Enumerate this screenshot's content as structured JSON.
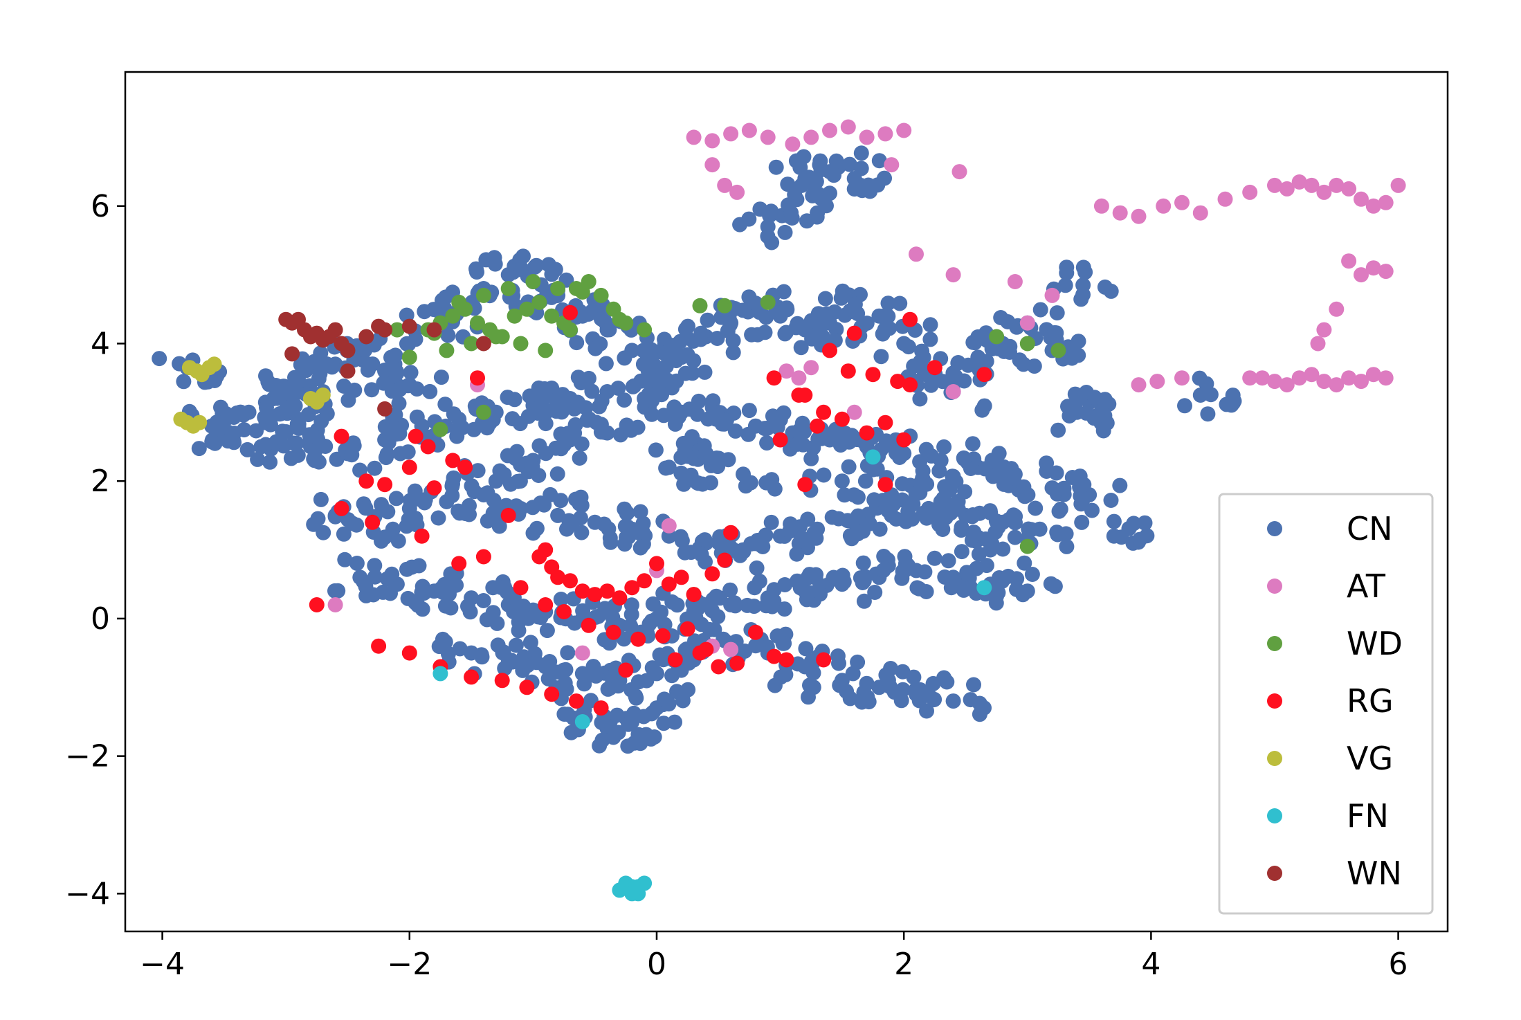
{
  "chart_data": {
    "type": "scatter",
    "title": "",
    "xlabel": "",
    "ylabel": "",
    "xlim": [
      -4.3,
      6.4
    ],
    "ylim": [
      -4.55,
      7.95
    ],
    "xticks": [
      -4,
      -2,
      0,
      2,
      4,
      6
    ],
    "yticks": [
      -4,
      -2,
      0,
      2,
      4,
      6
    ],
    "xtick_labels": [
      "−4",
      "−2",
      "0",
      "2",
      "4",
      "6"
    ],
    "ytick_labels": [
      "−4",
      "−2",
      "0",
      "2",
      "4",
      "6"
    ],
    "grid": false,
    "legend_position": "lower-right",
    "series": [
      {
        "name": "CN",
        "color": "#4c72b0",
        "note_dense": true,
        "x": [
          -3.6,
          -3.3,
          -3.1,
          -2.9,
          -2.6,
          -2.4,
          -2.2,
          -2.0,
          -1.8,
          -1.6,
          -1.4,
          -1.2,
          -1.0,
          -0.8,
          -0.6,
          -0.4,
          -0.2,
          0.0,
          0.2,
          0.4,
          0.6,
          0.8,
          1.0,
          1.2,
          1.4,
          1.6,
          1.8,
          2.0,
          2.2,
          2.4,
          2.6,
          2.8,
          3.0,
          3.2,
          3.4,
          3.6,
          -2.8,
          -2.5,
          -2.2,
          -1.9,
          -1.6,
          -1.3,
          -1.0,
          -0.7,
          -0.4,
          -0.1,
          0.2,
          0.5,
          0.8,
          1.1,
          1.4,
          1.7,
          2.0,
          2.3,
          2.6,
          2.9,
          3.2,
          3.5,
          -2.6,
          -2.3,
          -2.0,
          -1.7,
          -1.4,
          -1.1,
          -0.8,
          -0.5,
          -0.2,
          0.1,
          0.4,
          0.7,
          1.0,
          1.3,
          1.6,
          1.9,
          2.2,
          2.5,
          2.8,
          3.1,
          -2.4,
          -2.1,
          -1.8,
          -1.5,
          -1.2,
          -0.9,
          -0.6,
          -0.3,
          0.0,
          0.3,
          0.6,
          0.9,
          1.2,
          1.5,
          1.8,
          2.1,
          2.4,
          2.7,
          3.0,
          -1.5,
          -1.2,
          -0.9,
          -0.6,
          -0.3,
          0.0,
          0.3,
          0.6,
          0.9,
          1.2,
          1.5,
          1.8,
          2.1,
          2.4,
          -0.6,
          -0.4,
          -0.2,
          0.0,
          1.2,
          1.4,
          1.6,
          0.9,
          1.3,
          3.45,
          4.4,
          3.7,
          -3.8,
          -3.5,
          -3.2,
          -2.9,
          -2.7,
          -1.3,
          -1.0,
          -0.7,
          -0.4,
          0.1,
          0.4,
          0.7,
          1.5,
          1.9,
          2.3,
          2.7
        ],
        "y": [
          2.8,
          3.0,
          3.2,
          3.5,
          3.7,
          3.8,
          3.6,
          3.4,
          4.2,
          4.5,
          4.8,
          5.0,
          4.9,
          4.7,
          4.4,
          4.2,
          3.9,
          3.6,
          3.8,
          4.1,
          4.3,
          4.5,
          4.4,
          4.2,
          4.3,
          4.5,
          4.4,
          4.0,
          3.6,
          3.3,
          3.8,
          4.0,
          4.3,
          3.9,
          3.0,
          3.1,
          2.5,
          2.4,
          2.6,
          2.8,
          2.9,
          3.0,
          3.1,
          3.2,
          3.3,
          3.2,
          3.0,
          2.9,
          2.8,
          2.7,
          2.6,
          2.5,
          2.4,
          2.3,
          2.2,
          2.1,
          1.9,
          1.8,
          1.5,
          1.4,
          1.6,
          1.7,
          1.8,
          1.6,
          1.5,
          1.4,
          1.3,
          1.2,
          1.1,
          1.0,
          1.2,
          1.3,
          1.4,
          1.5,
          1.6,
          1.5,
          1.4,
          1.3,
          0.6,
          0.5,
          0.4,
          0.3,
          0.2,
          0.1,
          0.0,
          -0.1,
          0.0,
          0.1,
          0.2,
          0.3,
          0.4,
          0.5,
          0.6,
          0.7,
          0.6,
          0.5,
          0.4,
          -0.5,
          -0.6,
          -0.7,
          -0.8,
          -0.9,
          -0.8,
          -0.6,
          -0.4,
          -0.5,
          -0.7,
          -0.9,
          -1.0,
          -1.1,
          -1.2,
          -1.4,
          -1.6,
          -1.5,
          -1.3,
          6.4,
          6.5,
          6.4,
          5.7,
          5.9,
          4.85,
          3.25,
          1.2,
          3.65,
          2.7,
          2.5,
          2.9,
          3.3,
          2.0,
          2.3,
          2.6,
          2.7,
          2.2,
          2.4,
          2.1,
          2.0,
          1.8,
          1.7,
          1.0
        ]
      },
      {
        "name": "AT",
        "color": "#dd7bc0",
        "x": [
          0.3,
          0.45,
          0.6,
          0.75,
          0.9,
          1.1,
          1.25,
          1.4,
          1.55,
          1.7,
          1.85,
          2.0,
          0.45,
          0.55,
          0.65,
          1.9,
          2.45,
          3.6,
          3.75,
          3.9,
          4.1,
          4.25,
          4.4,
          4.6,
          4.8,
          5.0,
          5.1,
          5.2,
          5.3,
          5.4,
          5.5,
          5.6,
          5.7,
          5.8,
          5.9,
          6.0,
          5.6,
          5.7,
          5.8,
          5.9,
          5.5,
          5.4,
          5.35,
          4.9,
          5.0,
          5.1,
          5.2,
          5.3,
          5.4,
          5.5,
          5.6,
          5.7,
          5.8,
          5.9,
          3.9,
          4.05,
          4.25,
          4.8,
          1.05,
          1.15,
          1.25,
          2.1,
          2.4,
          3.0,
          3.2,
          2.9,
          0.0,
          -1.45,
          -2.6,
          -0.6,
          0.1,
          0.45,
          0.6,
          1.6,
          2.4
        ],
        "y": [
          7.0,
          6.95,
          7.05,
          7.1,
          7.0,
          6.9,
          7.0,
          7.1,
          7.15,
          7.0,
          7.05,
          7.1,
          6.6,
          6.3,
          6.2,
          6.6,
          6.5,
          6.0,
          5.9,
          5.85,
          6.0,
          6.05,
          5.9,
          6.1,
          6.2,
          6.3,
          6.25,
          6.35,
          6.3,
          6.2,
          6.3,
          6.25,
          6.1,
          6.0,
          6.05,
          6.3,
          5.2,
          5.0,
          5.1,
          5.05,
          4.5,
          4.2,
          4.0,
          3.5,
          3.45,
          3.4,
          3.5,
          3.55,
          3.45,
          3.4,
          3.5,
          3.45,
          3.55,
          3.5,
          3.4,
          3.45,
          3.5,
          3.5,
          3.6,
          3.5,
          3.65,
          5.3,
          5.0,
          4.3,
          4.7,
          4.9,
          0.7,
          3.4,
          0.2,
          -0.5,
          1.35,
          -0.4,
          -0.45,
          3.0,
          3.3
        ]
      },
      {
        "name": "WD",
        "color": "#60a040",
        "x": [
          -1.85,
          -1.75,
          -1.65,
          -1.55,
          -1.45,
          -1.35,
          -1.25,
          -1.15,
          -1.05,
          -0.95,
          -0.85,
          -0.75,
          -0.65,
          -0.55,
          -0.45,
          -0.35,
          -0.25,
          -1.7,
          -1.5,
          -1.3,
          -1.1,
          -0.9,
          -0.7,
          -1.6,
          -1.4,
          -1.2,
          -1.0,
          -0.8,
          -0.6,
          -0.3,
          -0.1,
          0.35,
          0.55,
          0.9,
          -2.1,
          -2.0,
          -1.8,
          -1.4,
          -1.75,
          2.75,
          3.0,
          3.25,
          0.3,
          3.0
        ],
        "y": [
          4.2,
          4.3,
          4.4,
          4.5,
          4.3,
          4.2,
          4.1,
          4.4,
          4.5,
          4.6,
          4.4,
          4.3,
          4.8,
          4.9,
          4.7,
          4.5,
          4.3,
          3.9,
          4.0,
          4.1,
          4.0,
          3.9,
          4.2,
          4.6,
          4.7,
          4.8,
          4.9,
          4.8,
          4.75,
          4.35,
          4.2,
          4.55,
          4.55,
          4.6,
          4.2,
          3.8,
          4.15,
          3.0,
          2.75,
          4.1,
          4.0,
          3.9,
          0.35,
          1.05
        ]
      },
      {
        "name": "RG",
        "color": "#ff1020",
        "x": [
          -0.7,
          -1.45,
          -2.55,
          -2.35,
          -2.2,
          -2.0,
          -1.95,
          -1.85,
          -1.65,
          -1.55,
          -1.8,
          -1.2,
          -0.95,
          -0.9,
          -0.85,
          -0.8,
          -0.7,
          -0.6,
          -0.5,
          -0.4,
          -0.3,
          -0.2,
          -0.1,
          0.0,
          0.1,
          0.2,
          0.3,
          0.45,
          0.55,
          0.6,
          -2.55,
          -2.3,
          -1.9,
          -1.6,
          -1.4,
          -1.1,
          -0.9,
          -0.75,
          -0.55,
          -0.35,
          -0.15,
          0.05,
          0.25,
          0.4,
          0.65,
          0.8,
          -2.75,
          -2.25,
          -2.0,
          -1.75,
          -1.5,
          -1.25,
          -1.05,
          -0.85,
          -0.65,
          -0.45,
          -0.25,
          0.15,
          0.35,
          0.5,
          0.95,
          1.05,
          1.2,
          1.35,
          1.5,
          1.7,
          1.85,
          2.05,
          2.25,
          2.65,
          1.0,
          1.15,
          1.3,
          1.55,
          1.75,
          1.95,
          2.0,
          1.6,
          1.85,
          1.4,
          2.05,
          0.95,
          1.2,
          1.35
        ],
        "y": [
          4.45,
          3.5,
          2.65,
          2.0,
          1.95,
          2.2,
          2.65,
          2.5,
          2.3,
          2.2,
          1.9,
          1.5,
          0.9,
          1.0,
          0.75,
          0.6,
          0.55,
          0.4,
          0.35,
          0.4,
          0.3,
          0.45,
          0.55,
          0.8,
          0.5,
          0.6,
          0.35,
          0.65,
          0.85,
          1.25,
          1.6,
          1.4,
          1.2,
          0.8,
          0.9,
          0.45,
          0.2,
          0.1,
          -0.1,
          -0.2,
          -0.3,
          -0.25,
          -0.15,
          -0.45,
          -0.65,
          -0.2,
          0.2,
          -0.4,
          -0.5,
          -0.7,
          -0.85,
          -0.9,
          -1.0,
          -1.1,
          -1.2,
          -1.3,
          -0.75,
          -0.6,
          -0.5,
          -0.7,
          -0.55,
          -0.6,
          3.25,
          3.0,
          2.9,
          2.7,
          2.85,
          3.4,
          3.65,
          3.55,
          2.6,
          3.25,
          2.8,
          3.6,
          3.55,
          3.45,
          2.6,
          4.15,
          1.95,
          3.9,
          4.35,
          3.5,
          1.95,
          -0.6
        ]
      },
      {
        "name": "VG",
        "color": "#bcbd3c",
        "x": [
          -3.85,
          -3.8,
          -3.75,
          -3.7,
          -3.78,
          -3.72,
          -3.68,
          -3.62,
          -3.58,
          -2.8,
          -2.7,
          -2.75
        ],
        "y": [
          2.9,
          2.85,
          2.8,
          2.85,
          3.65,
          3.6,
          3.55,
          3.65,
          3.7,
          3.2,
          3.25,
          3.15
        ]
      },
      {
        "name": "FN",
        "color": "#30bfcf",
        "x": [
          -0.3,
          -0.25,
          -0.2,
          -0.15,
          -0.1,
          -0.2,
          -0.15,
          -1.75,
          -0.6,
          1.75,
          2.65
        ],
        "y": [
          -3.95,
          -3.85,
          -3.9,
          -4.0,
          -3.85,
          -4.0,
          -3.9,
          -0.8,
          -1.5,
          2.35,
          0.45
        ]
      },
      {
        "name": "WN",
        "color": "#a03030",
        "x": [
          -3.0,
          -2.95,
          -2.9,
          -2.85,
          -2.8,
          -2.75,
          -2.7,
          -2.65,
          -2.6,
          -2.55,
          -2.5,
          -2.35,
          -2.25,
          -2.2,
          -2.0,
          -1.8,
          -1.4,
          -2.95,
          -2.5,
          -2.2
        ],
        "y": [
          4.35,
          4.3,
          4.35,
          4.2,
          4.1,
          4.15,
          4.05,
          4.1,
          4.2,
          4.0,
          3.9,
          4.1,
          4.25,
          4.2,
          4.25,
          4.2,
          4.0,
          3.85,
          3.6,
          3.05
        ]
      }
    ]
  }
}
